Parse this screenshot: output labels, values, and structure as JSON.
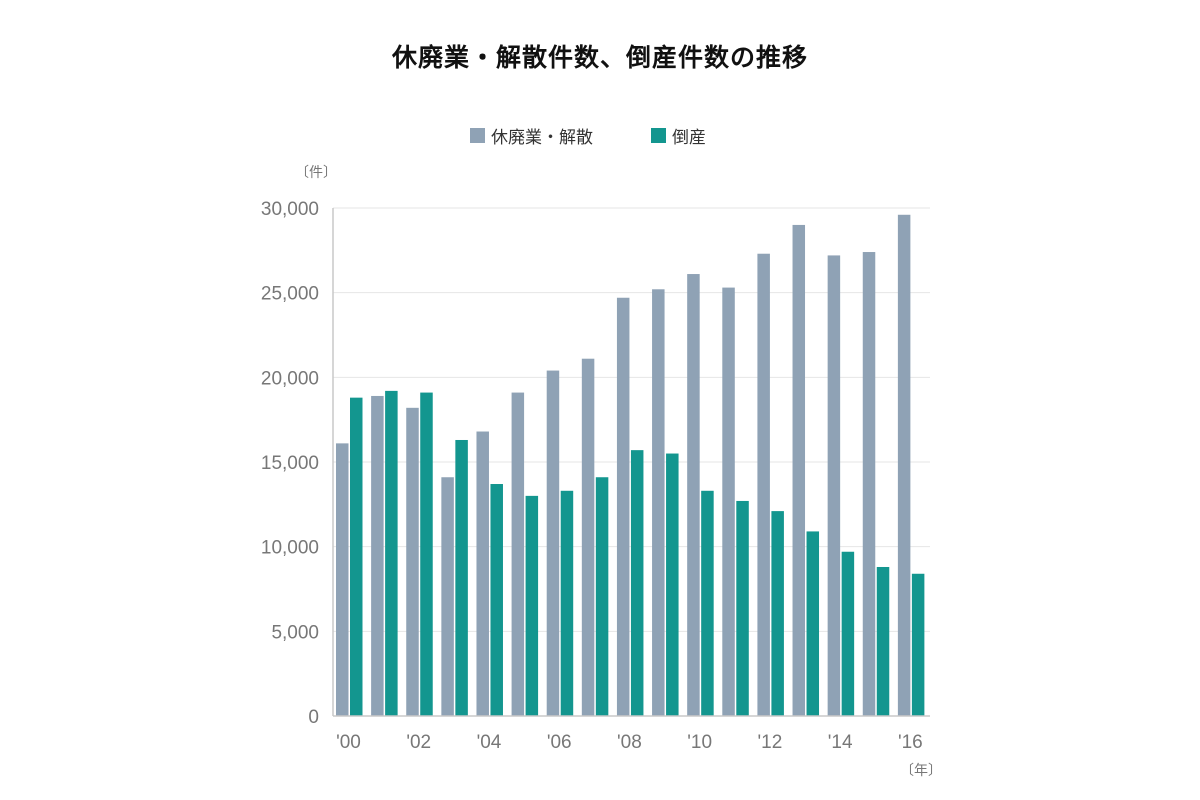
{
  "title": "休廃業・解散件数、倒産件数の推移",
  "units": {
    "y": "〔件〕",
    "x": "〔年〕"
  },
  "colors": {
    "closures": "#8fa2b5",
    "bankruptcies": "#13968f",
    "grid": "#e6e6e6",
    "axis": "#c8c8c8"
  },
  "chart_data": {
    "type": "bar",
    "title": "休廃業・解散件数、倒産件数の推移",
    "xlabel": "〔年〕",
    "ylabel": "〔件〕",
    "ylim": [
      0,
      30000
    ],
    "grid": true,
    "legend_position": "top",
    "categories": [
      "2000",
      "2001",
      "2002",
      "2003",
      "2004",
      "2005",
      "2006",
      "2007",
      "2008",
      "2009",
      "2010",
      "2011",
      "2012",
      "2013",
      "2014",
      "2015",
      "2016"
    ],
    "x_tick_labels": [
      "'00",
      "",
      "'02",
      "",
      "'04",
      "",
      "'06",
      "",
      "'08",
      "",
      "'10",
      "",
      "'12",
      "",
      "'14",
      "",
      "'16"
    ],
    "y_ticks": [
      0,
      5000,
      10000,
      15000,
      20000,
      25000,
      30000
    ],
    "y_tick_labels": [
      "0",
      "5,000",
      "10,000",
      "15,000",
      "20,000",
      "25,000",
      "30,000"
    ],
    "series": [
      {
        "name": "休廃業・解散",
        "color": "#8fa2b5",
        "values": [
          16100,
          18900,
          18200,
          14100,
          16800,
          19100,
          20400,
          21100,
          24700,
          25200,
          26100,
          25300,
          27300,
          29000,
          27200,
          27400,
          29600
        ]
      },
      {
        "name": "倒産",
        "color": "#13968f",
        "values": [
          18800,
          19200,
          19100,
          16300,
          13700,
          13000,
          13300,
          14100,
          15700,
          15500,
          13300,
          12700,
          12100,
          10900,
          9700,
          8800,
          8400
        ]
      }
    ]
  }
}
